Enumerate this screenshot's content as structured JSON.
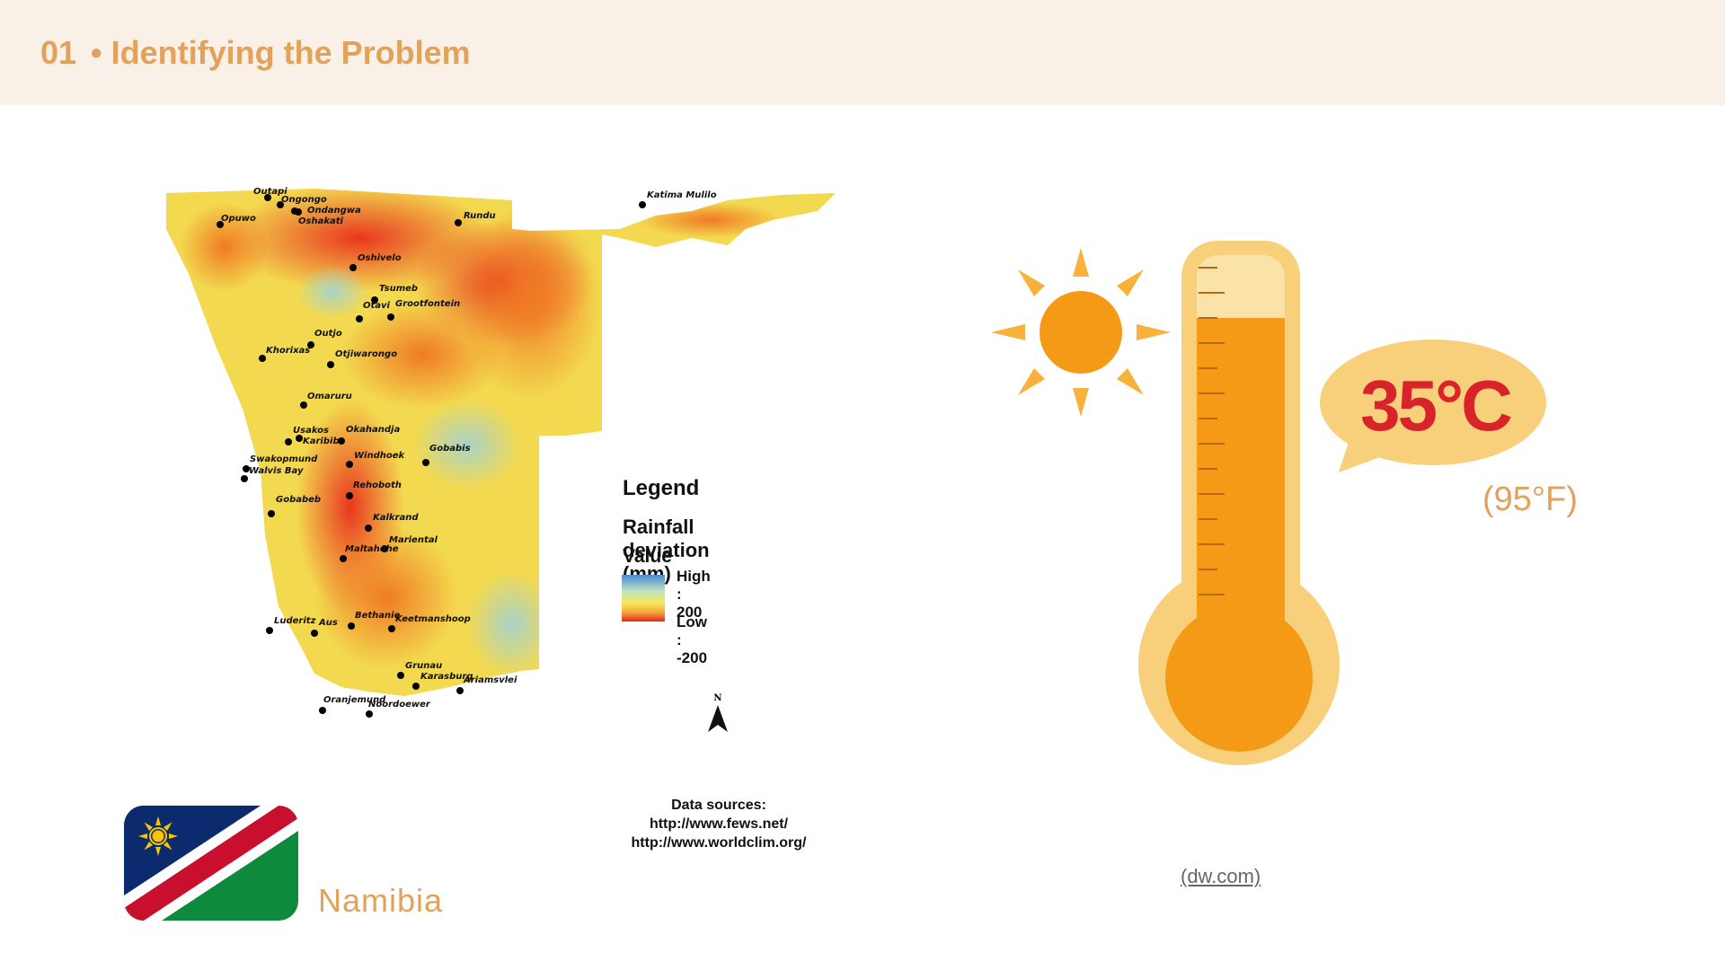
{
  "header": {
    "number": "01",
    "title": "• Identifying the Problem"
  },
  "map": {
    "legend_title": "Legend",
    "legend_subtitle": "Rainfall deviation (mm)",
    "value_label": "Value",
    "high_label": "High : 200",
    "low_label": "Low : -200",
    "north_label": "N",
    "sources_title": "Data sources:",
    "source_1": "http://www.fews.net/",
    "source_2": "http://www.worldclim.org/",
    "cities": [
      "Outapi",
      "Ongongo",
      "Ondangwa",
      "Oshakati",
      "Opuwo",
      "Rundu",
      "Katima Mulilo",
      "Oshivelo",
      "Tsumeb",
      "Otavi",
      "Grootfontein",
      "Outjo",
      "Khorixas",
      "Otjiwarongo",
      "Omaruru",
      "Usakos",
      "Karibib",
      "Okahandja",
      "Windhoek",
      "Gobabis",
      "Swakopmund",
      "Walvis Bay",
      "Rehoboth",
      "Gobabeb",
      "Kalkrand",
      "Mariental",
      "Maltahohe",
      "Luderitz",
      "Aus",
      "Bethanie",
      "Keetmanshoop",
      "Grunau",
      "Karasburg",
      "Ariamsvlei",
      "Oranjemund",
      "Noordoewer"
    ]
  },
  "flag": {
    "country": "Namibia"
  },
  "thermometer": {
    "celsius": "35°C",
    "fahrenheit": "(95°F)"
  },
  "credit": "(dw.com)",
  "colors": {
    "accent": "#e3a25c",
    "header_bg": "#f9f0e8",
    "temp_red": "#d8232a",
    "thermo_orange": "#f59a17",
    "thermo_light": "#f8cf7a"
  }
}
